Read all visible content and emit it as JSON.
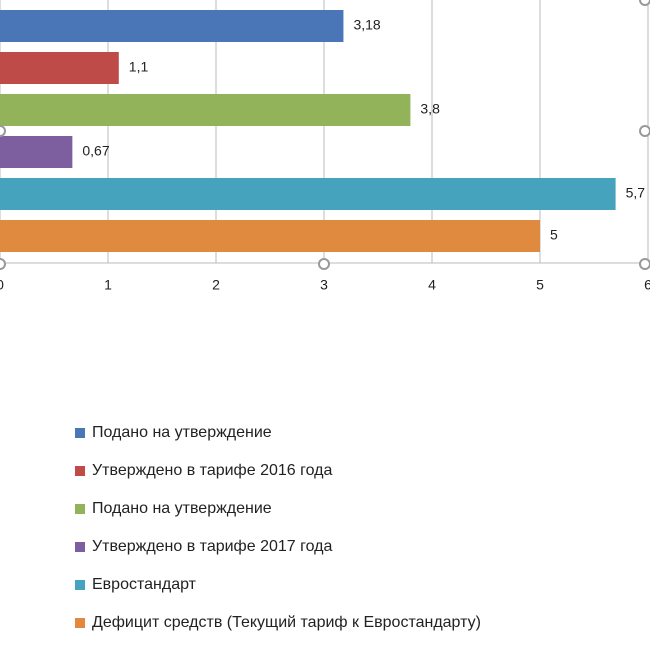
{
  "chart_data": {
    "type": "bar",
    "orientation": "horizontal",
    "series": [
      {
        "name": "Подано на утверждение",
        "color": "#4a76b8",
        "values": [
          3.18
        ],
        "value_labels": [
          "3,18"
        ]
      },
      {
        "name": "Утверждено в  тарифе 2016 года",
        "color": "#be4b48",
        "values": [
          1.1
        ],
        "value_labels": [
          "1,1"
        ]
      },
      {
        "name": "Подано на утверждение",
        "color": "#93b35a",
        "values": [
          3.8
        ],
        "value_labels": [
          "3,8"
        ]
      },
      {
        "name": "Утверждено в  тарифе 2017 года",
        "color": "#7d5fa0",
        "values": [
          0.67
        ],
        "value_labels": [
          "0,67"
        ]
      },
      {
        "name": "Евростандарт",
        "color": "#45a3bd",
        "values": [
          5.7
        ],
        "value_labels": [
          "5,7"
        ]
      },
      {
        "name": "Дефицит средств (Текущий тариф к Евростандарту)",
        "color": "#e08a40",
        "values": [
          5
        ],
        "value_labels": [
          "5"
        ]
      }
    ],
    "xlim": [
      0,
      6
    ],
    "xticks": [
      0,
      1,
      2,
      3,
      4,
      5,
      6
    ],
    "grid": true
  }
}
